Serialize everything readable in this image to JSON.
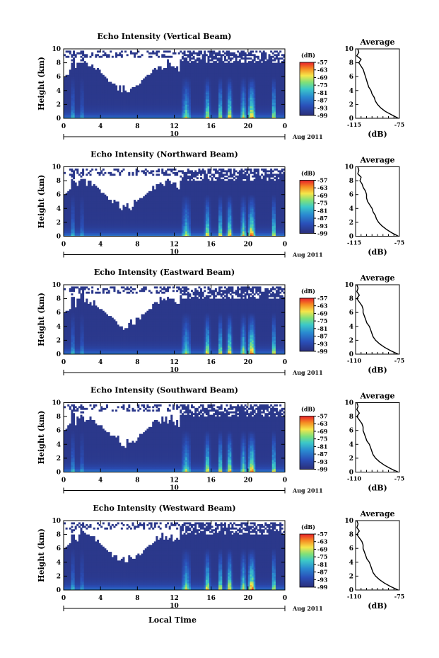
{
  "chart_data": {
    "type": "heatmap",
    "panels": [
      {
        "id": "vertical",
        "title": "Echo Intensity (Vertical Beam)",
        "average_profile": [
          [
            -76,
            0
          ],
          [
            -82,
            0.5
          ],
          [
            -88,
            1
          ],
          [
            -92,
            1.5
          ],
          [
            -95,
            2
          ],
          [
            -97,
            2.5
          ],
          [
            -98,
            3
          ],
          [
            -100,
            3.5
          ],
          [
            -101,
            4
          ],
          [
            -103,
            4.5
          ],
          [
            -104,
            5
          ],
          [
            -105,
            5.5
          ],
          [
            -106,
            6
          ],
          [
            -107,
            6.5
          ],
          [
            -108,
            7
          ],
          [
            -110,
            7.5
          ],
          [
            -112,
            8
          ],
          [
            -110,
            8.5
          ],
          [
            -114,
            9
          ],
          [
            -112,
            9.5
          ],
          [
            -113,
            10
          ]
        ]
      },
      {
        "id": "northward",
        "title": "Echo Intensity (Northward Beam)",
        "average_profile": [
          [
            -76,
            0
          ],
          [
            -82,
            0.5
          ],
          [
            -87,
            1
          ],
          [
            -91,
            1.5
          ],
          [
            -94,
            2
          ],
          [
            -96,
            2.5
          ],
          [
            -97,
            3
          ],
          [
            -99,
            3.5
          ],
          [
            -100,
            4
          ],
          [
            -102,
            4.5
          ],
          [
            -104,
            5
          ],
          [
            -105,
            5.5
          ],
          [
            -105,
            6
          ],
          [
            -106,
            6.5
          ],
          [
            -108,
            7
          ],
          [
            -109,
            7.5
          ],
          [
            -111,
            8
          ],
          [
            -110,
            8.5
          ],
          [
            -113,
            9
          ],
          [
            -112,
            9.5
          ],
          [
            -113,
            10
          ]
        ]
      },
      {
        "id": "eastward",
        "title": "Echo Intensity (Eastward Beam)",
        "average_profile": [
          [
            -76,
            0
          ],
          [
            -82,
            0.5
          ],
          [
            -87,
            1
          ],
          [
            -91,
            1.5
          ],
          [
            -94,
            2
          ],
          [
            -96,
            2.5
          ],
          [
            -97,
            3
          ],
          [
            -98,
            3.5
          ],
          [
            -99,
            4
          ],
          [
            -101,
            4.5
          ],
          [
            -102,
            5
          ],
          [
            -103,
            5.5
          ],
          [
            -104,
            6
          ],
          [
            -104,
            6.5
          ],
          [
            -105,
            7
          ],
          [
            -107,
            7.5
          ],
          [
            -109,
            8
          ],
          [
            -107,
            8.5
          ],
          [
            -109,
            9
          ],
          [
            -108,
            9.5
          ],
          [
            -109,
            10
          ]
        ]
      },
      {
        "id": "southward",
        "title": "Echo Intensity (Southward Beam)",
        "average_profile": [
          [
            -76,
            0
          ],
          [
            -82,
            0.5
          ],
          [
            -87,
            1
          ],
          [
            -91,
            1.5
          ],
          [
            -94,
            2
          ],
          [
            -96,
            2.5
          ],
          [
            -97,
            3
          ],
          [
            -98,
            3.5
          ],
          [
            -99,
            4
          ],
          [
            -101,
            4.5
          ],
          [
            -102,
            5
          ],
          [
            -103,
            5.5
          ],
          [
            -104,
            6
          ],
          [
            -104,
            6.5
          ],
          [
            -105,
            7
          ],
          [
            -107,
            7.5
          ],
          [
            -109,
            8
          ],
          [
            -107,
            8.5
          ],
          [
            -109,
            9
          ],
          [
            -108,
            9.5
          ],
          [
            -109,
            10
          ]
        ]
      },
      {
        "id": "westward",
        "title": "Echo Intensity (Westward Beam)",
        "average_profile": [
          [
            -76,
            0
          ],
          [
            -82,
            0.5
          ],
          [
            -87,
            1
          ],
          [
            -91,
            1.5
          ],
          [
            -94,
            2
          ],
          [
            -96,
            2.5
          ],
          [
            -97,
            3
          ],
          [
            -98,
            3.5
          ],
          [
            -99,
            4
          ],
          [
            -101,
            4.5
          ],
          [
            -102,
            5
          ],
          [
            -103,
            5.5
          ],
          [
            -104,
            6
          ],
          [
            -104,
            6.5
          ],
          [
            -105,
            7
          ],
          [
            -107,
            7.5
          ],
          [
            -109,
            8
          ],
          [
            -107,
            8.5
          ],
          [
            -109,
            9
          ],
          [
            -108,
            9.5
          ],
          [
            -109,
            10
          ]
        ]
      }
    ],
    "x_ticks": [
      "0",
      "4",
      "8",
      "12",
      "16",
      "20",
      "0"
    ],
    "x_range": [
      0,
      24
    ],
    "y_ticks": [
      "0",
      "2",
      "4",
      "6",
      "8",
      "10"
    ],
    "y_range": [
      0,
      10
    ],
    "ylabel": "Height (km)",
    "date_tick_label": "10",
    "date_label": "Aug 2011",
    "xlabel": "Local Time",
    "colorbar": {
      "label": "(dB)",
      "ticks": [
        "-57",
        "-63",
        "-69",
        "-75",
        "-81",
        "-87",
        "-93",
        "-99"
      ],
      "range": [
        -99,
        -57
      ]
    },
    "average": {
      "title": "Average",
      "xlabel": "(dB)",
      "x_tick_labels_by_panel": [
        [
          "-115",
          "-75"
        ],
        [
          "-115",
          "-75"
        ],
        [
          "-110",
          "-75"
        ],
        [
          "-110",
          "-75"
        ],
        [
          "-110",
          "-75"
        ]
      ],
      "x_ranges_by_panel": [
        [
          -115,
          -75
        ],
        [
          -115,
          -75
        ],
        [
          -110,
          -75
        ],
        [
          -110,
          -75
        ],
        [
          -110,
          -75
        ]
      ]
    },
    "colors": {
      "low": "#2b2f7a",
      "mid": "#2a8ad0",
      "high": "#f03020",
      "max": "#ff9800"
    }
  }
}
